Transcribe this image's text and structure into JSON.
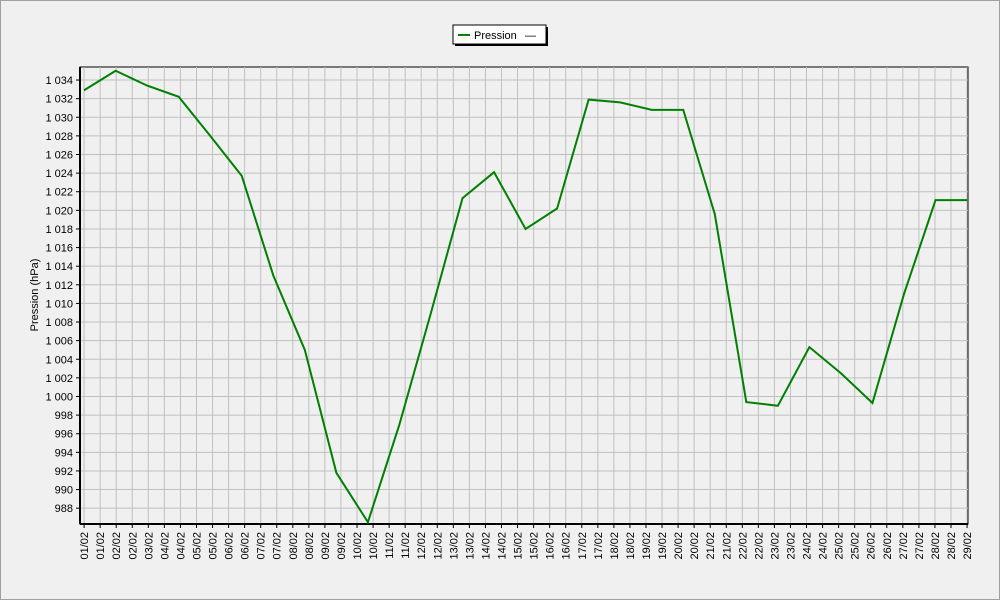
{
  "chart_data": {
    "type": "line",
    "y_label": "Pression (hPa)",
    "legend_suffix": "—",
    "grid": true,
    "x": [
      1,
      2,
      3,
      4,
      5,
      6,
      7,
      8,
      9,
      10,
      11,
      12,
      13,
      14,
      15,
      16,
      17,
      18,
      19,
      20,
      21,
      22,
      23,
      24,
      25,
      26,
      27,
      28,
      29
    ],
    "series": [
      {
        "name": "Pression",
        "color": "#008000",
        "values": [
          1032.9,
          1035,
          1033.4,
          1032.2,
          1028,
          1023.7,
          1013,
          1005,
          991.8,
          986.5,
          997,
          1009,
          1021.3,
          1024.1,
          1018,
          1020.2,
          1031.9,
          1031.6,
          1030.8,
          1030.8,
          1019.6,
          999.4,
          999,
          1005.3,
          1002.5,
          999.3,
          1011,
          1021.1,
          1021.1
        ]
      }
    ],
    "xlim": [
      0.87,
      29.03
    ],
    "xticks": [
      {
        "value": 1,
        "label": "01/02"
      },
      {
        "value": 1.509,
        "label": "01/02"
      },
      {
        "value": 2.018,
        "label": "02/02"
      },
      {
        "value": 2.527,
        "label": "02/02"
      },
      {
        "value": 3.036,
        "label": "03/02"
      },
      {
        "value": 3.545,
        "label": "04/02"
      },
      {
        "value": 4.055,
        "label": "04/02"
      },
      {
        "value": 4.564,
        "label": "05/02"
      },
      {
        "value": 5.073,
        "label": "05/02"
      },
      {
        "value": 5.582,
        "label": "06/02"
      },
      {
        "value": 6.091,
        "label": "06/02"
      },
      {
        "value": 6.6,
        "label": "07/02"
      },
      {
        "value": 7.109,
        "label": "07/02"
      },
      {
        "value": 7.618,
        "label": "08/02"
      },
      {
        "value": 8.127,
        "label": "08/02"
      },
      {
        "value": 8.636,
        "label": "09/02"
      },
      {
        "value": 9.145,
        "label": "09/02"
      },
      {
        "value": 9.655,
        "label": "10/02"
      },
      {
        "value": 10.164,
        "label": "10/02"
      },
      {
        "value": 10.673,
        "label": "11/02"
      },
      {
        "value": 11.182,
        "label": "11/02"
      },
      {
        "value": 11.691,
        "label": "12/02"
      },
      {
        "value": 12.2,
        "label": "12/02"
      },
      {
        "value": 12.709,
        "label": "13/02"
      },
      {
        "value": 13.218,
        "label": "13/02"
      },
      {
        "value": 13.727,
        "label": "14/02"
      },
      {
        "value": 14.236,
        "label": "14/02"
      },
      {
        "value": 14.745,
        "label": "15/02"
      },
      {
        "value": 15.255,
        "label": "15/02"
      },
      {
        "value": 15.764,
        "label": "16/02"
      },
      {
        "value": 16.273,
        "label": "16/02"
      },
      {
        "value": 16.782,
        "label": "17/02"
      },
      {
        "value": 17.291,
        "label": "17/02"
      },
      {
        "value": 17.8,
        "label": "18/02"
      },
      {
        "value": 18.309,
        "label": "18/02"
      },
      {
        "value": 18.818,
        "label": "19/02"
      },
      {
        "value": 19.327,
        "label": "19/02"
      },
      {
        "value": 19.836,
        "label": "20/02"
      },
      {
        "value": 20.345,
        "label": "20/02"
      },
      {
        "value": 20.855,
        "label": "21/02"
      },
      {
        "value": 21.364,
        "label": "21/02"
      },
      {
        "value": 21.873,
        "label": "22/02"
      },
      {
        "value": 22.382,
        "label": "22/02"
      },
      {
        "value": 22.891,
        "label": "23/02"
      },
      {
        "value": 23.4,
        "label": "23/02"
      },
      {
        "value": 23.909,
        "label": "24/02"
      },
      {
        "value": 24.418,
        "label": "24/02"
      },
      {
        "value": 24.927,
        "label": "25/02"
      },
      {
        "value": 25.436,
        "label": "25/02"
      },
      {
        "value": 25.945,
        "label": "26/02"
      },
      {
        "value": 26.455,
        "label": "26/02"
      },
      {
        "value": 26.964,
        "label": "27/02"
      },
      {
        "value": 27.473,
        "label": "27/02"
      },
      {
        "value": 27.982,
        "label": "28/02"
      },
      {
        "value": 28.491,
        "label": "28/02"
      },
      {
        "value": 29,
        "label": "29/02"
      }
    ],
    "ylim": [
      986.3,
      1035.4
    ],
    "yticks": [
      988,
      990,
      992,
      994,
      996,
      998,
      {
        "value": 1000,
        "label": "1 000"
      },
      {
        "value": 1002,
        "label": "1 002"
      },
      {
        "value": 1004,
        "label": "1 004"
      },
      {
        "value": 1006,
        "label": "1 006"
      },
      {
        "value": 1008,
        "label": "1 008"
      },
      {
        "value": 1010,
        "label": "1 010"
      },
      {
        "value": 1012,
        "label": "1 012"
      },
      {
        "value": 1014,
        "label": "1 014"
      },
      {
        "value": 1016,
        "label": "1 016"
      },
      {
        "value": 1018,
        "label": "1 018"
      },
      {
        "value": 1020,
        "label": "1 020"
      },
      {
        "value": 1022,
        "label": "1 022"
      },
      {
        "value": 1024,
        "label": "1 024"
      },
      {
        "value": 1026,
        "label": "1 026"
      },
      {
        "value": 1028,
        "label": "1 028"
      },
      {
        "value": 1030,
        "label": "1 030"
      },
      {
        "value": 1032,
        "label": "1 032"
      },
      {
        "value": 1034,
        "label": "1 034"
      }
    ]
  }
}
